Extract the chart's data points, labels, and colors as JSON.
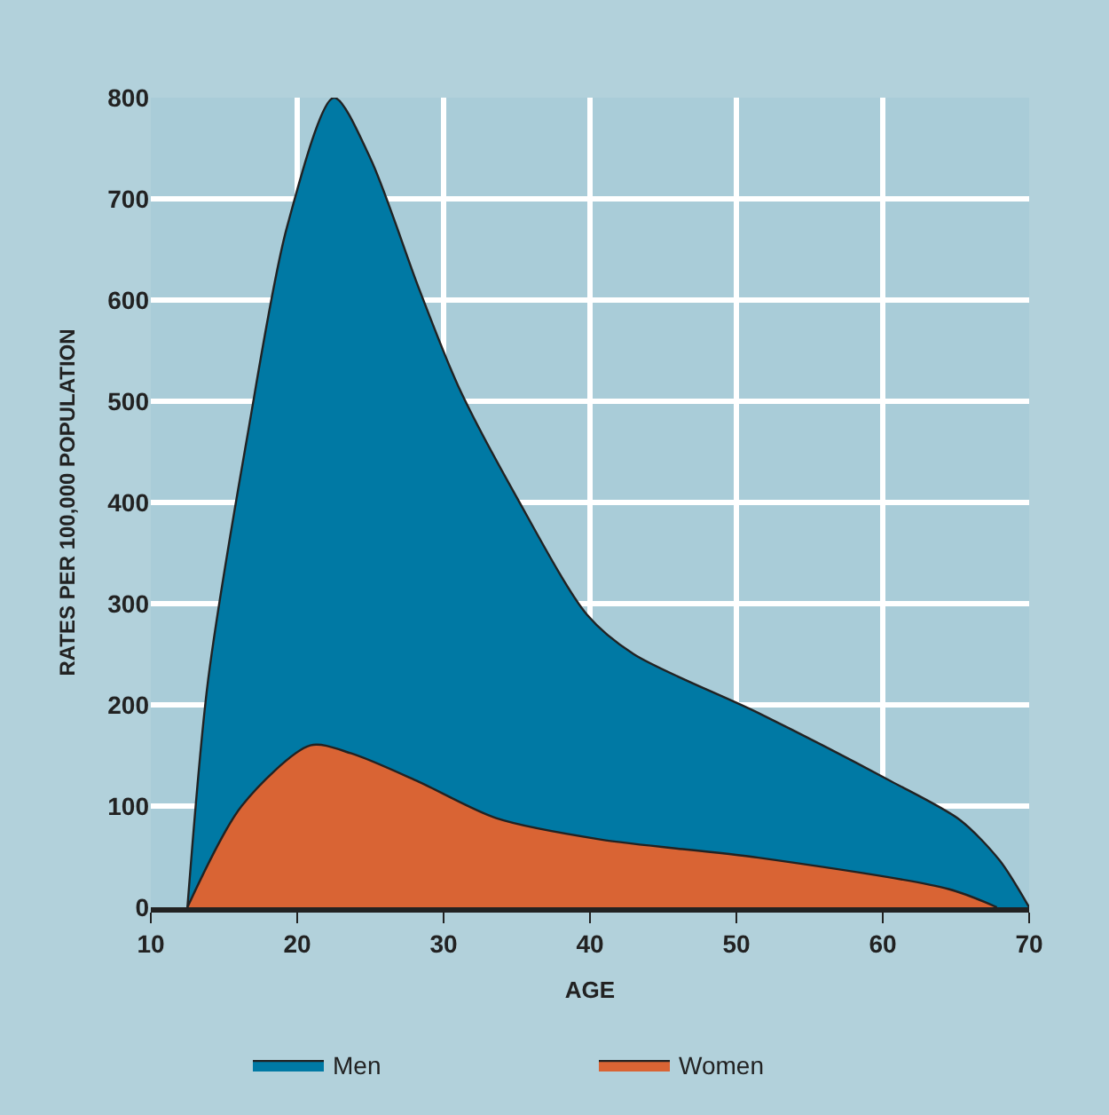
{
  "chart_data": {
    "type": "area",
    "xlabel": "AGE",
    "ylabel": "RATES PER 100,000 POPULATION",
    "xlim": [
      10,
      70
    ],
    "ylim": [
      0,
      800
    ],
    "xticks": [
      10,
      20,
      30,
      40,
      50,
      60,
      70
    ],
    "yticks": [
      0,
      100,
      200,
      300,
      400,
      500,
      600,
      700,
      800
    ],
    "grid": true,
    "legend": "bottom",
    "marker": "none",
    "line_style": "solid",
    "series": [
      {
        "name": "Men",
        "color": "#0079a4",
        "x": [
          12.5,
          13.9,
          16.6,
          19.3,
          22.5,
          25,
          28.3,
          31,
          35,
          39.8,
          43,
          51.5,
          60.5,
          65.3,
          68,
          70
        ],
        "values": [
          0,
          223,
          466,
          672,
          800,
          740,
          612,
          515,
          405,
          289,
          250,
          192,
          125,
          86,
          46,
          0
        ]
      },
      {
        "name": "Women",
        "color": "#d96434",
        "x": [
          12.5,
          16.2,
          20.9,
          23.7,
          28.3,
          33.6,
          40.7,
          51.5,
          64.5,
          67.8
        ],
        "values": [
          0,
          100,
          160,
          152,
          124,
          88,
          67,
          49,
          18,
          0
        ]
      }
    ]
  }
}
